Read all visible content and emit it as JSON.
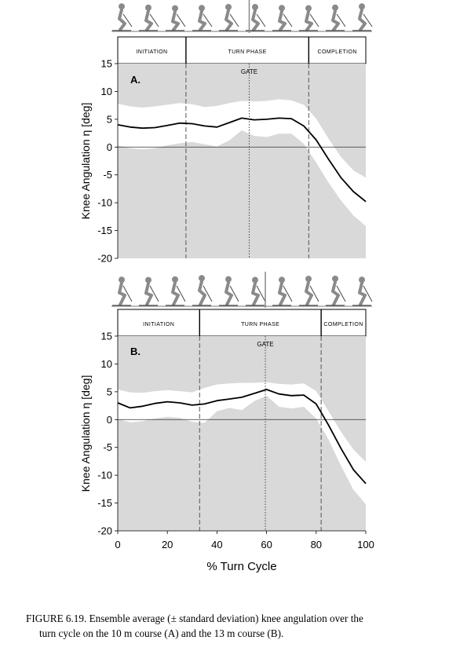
{
  "caption": {
    "line1": "FIGURE 6.19.  Ensemble average (± standard deviation) knee angulation over the",
    "line2": "turn cycle on the 10 m course (A) and the 13 m course (B)."
  },
  "colors": {
    "band": "#d9d9d9",
    "line": "#000000",
    "phase_line": "#555555",
    "skier": "#8a8a8a"
  },
  "icons": [
    "skier-sequence-illustration"
  ],
  "chart_data": [
    {
      "type": "line",
      "panel_label": "A.",
      "ylabel": "Knee Angulation η [deg]",
      "xlabel": "% Turn Cycle",
      "xlim": [
        0,
        100
      ],
      "ylim": [
        -20,
        15
      ],
      "yticks": [
        15,
        10,
        5,
        0,
        -5,
        -10,
        -15,
        -20
      ],
      "xticks": [
        0,
        20,
        40,
        60,
        80,
        100
      ],
      "phases": [
        {
          "label": "INITIATION",
          "end": 27.5
        },
        {
          "label": "TURN PHASE",
          "end": 77
        },
        {
          "label": "COMPLETION",
          "end": 100
        }
      ],
      "gate": {
        "label": "GATE",
        "x": 53
      },
      "zero_line": true,
      "x": [
        0,
        5,
        10,
        15,
        20,
        25,
        30,
        35,
        40,
        45,
        50,
        55,
        60,
        65,
        70,
        75,
        80,
        85,
        90,
        95,
        100
      ],
      "mean": [
        4.0,
        3.6,
        3.4,
        3.5,
        3.9,
        4.3,
        4.2,
        3.8,
        3.6,
        4.4,
        5.2,
        4.9,
        5.0,
        5.2,
        5.1,
        3.8,
        1.3,
        -2.2,
        -5.5,
        -8.0,
        -9.8
      ],
      "upper": [
        7.8,
        7.3,
        7.1,
        7.3,
        7.6,
        7.9,
        7.7,
        7.2,
        7.4,
        7.9,
        8.3,
        8.2,
        8.3,
        8.6,
        8.4,
        7.6,
        5.1,
        1.5,
        -1.8,
        -4.2,
        -5.5
      ],
      "lower": [
        0.3,
        -0.2,
        -0.4,
        -0.2,
        0.3,
        0.7,
        0.9,
        0.5,
        0.1,
        1.2,
        3.0,
        2.0,
        1.8,
        2.4,
        2.4,
        0.6,
        -2.8,
        -6.4,
        -9.6,
        -12.3,
        -14.2
      ]
    },
    {
      "type": "line",
      "panel_label": "B.",
      "ylabel": "Knee Angulation η [deg]",
      "xlabel": "% Turn Cycle",
      "xlim": [
        0,
        100
      ],
      "ylim": [
        -20,
        15
      ],
      "yticks": [
        15,
        10,
        5,
        0,
        -5,
        -10,
        -15,
        -20
      ],
      "xticks": [
        0,
        20,
        40,
        60,
        80,
        100
      ],
      "phases": [
        {
          "label": "INITIATION",
          "end": 33
        },
        {
          "label": "TURN PHASE",
          "end": 82
        },
        {
          "label": "COMPLETION",
          "end": 100
        }
      ],
      "gate": {
        "label": "GATE",
        "x": 59.5
      },
      "zero_line": true,
      "x": [
        0,
        5,
        10,
        15,
        20,
        25,
        30,
        35,
        40,
        45,
        50,
        55,
        60,
        65,
        70,
        75,
        80,
        85,
        90,
        95,
        100
      ],
      "mean": [
        3.0,
        2.1,
        2.4,
        2.9,
        3.2,
        3.0,
        2.6,
        2.8,
        3.4,
        3.7,
        4.0,
        4.7,
        5.4,
        4.6,
        4.3,
        4.4,
        2.8,
        -1.0,
        -5.2,
        -9.0,
        -11.5
      ],
      "upper": [
        5.4,
        4.9,
        4.8,
        5.1,
        5.3,
        5.1,
        4.9,
        5.7,
        6.3,
        6.5,
        6.6,
        6.6,
        6.7,
        6.4,
        6.3,
        6.5,
        5.1,
        1.5,
        -2.2,
        -5.4,
        -7.6
      ],
      "lower": [
        0.1,
        -0.5,
        -0.3,
        0.2,
        0.5,
        0.3,
        -0.4,
        -0.6,
        1.5,
        2.1,
        1.7,
        3.3,
        4.3,
        2.3,
        2.0,
        2.3,
        0.2,
        -3.6,
        -8.3,
        -12.6,
        -15.2
      ]
    }
  ]
}
